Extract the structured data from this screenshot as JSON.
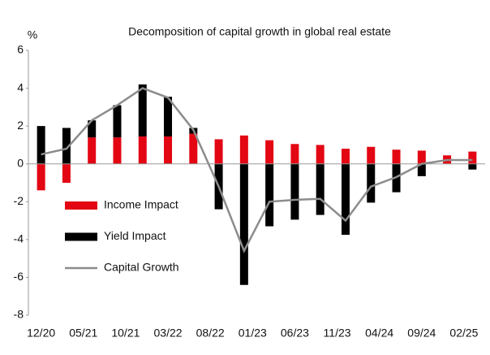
{
  "chart_data": {
    "type": "bar",
    "title": "Decomposition of capital growth in global real estate",
    "y_label": "%",
    "x": [
      0,
      3,
      6,
      9,
      12,
      15,
      18,
      21,
      24,
      27,
      30,
      33,
      36,
      39,
      42,
      45,
      48,
      51
    ],
    "xlim": [
      -1.5,
      52.5
    ],
    "xticks": [
      {
        "value": 0,
        "label": "12/20"
      },
      {
        "value": 5,
        "label": "05/21"
      },
      {
        "value": 10,
        "label": "10/21"
      },
      {
        "value": 15,
        "label": "03/22"
      },
      {
        "value": 20,
        "label": "08/22"
      },
      {
        "value": 25,
        "label": "01/23"
      },
      {
        "value": 30,
        "label": "06/23"
      },
      {
        "value": 35,
        "label": "11/23"
      },
      {
        "value": 40,
        "label": "04/24"
      },
      {
        "value": 45,
        "label": "09/24"
      },
      {
        "value": 50,
        "label": "02/25"
      }
    ],
    "ylim": [
      -8,
      6
    ],
    "yticks": [
      -8,
      -6,
      -4,
      -2,
      0,
      2,
      4,
      6
    ],
    "stacked": true,
    "legend": "left",
    "series": [
      {
        "name": "Income Impact",
        "type": "bar",
        "color": "#e30613",
        "values": [
          -1.4,
          -1.0,
          1.4,
          1.4,
          1.45,
          1.45,
          1.6,
          1.3,
          1.5,
          1.25,
          1.05,
          1.0,
          0.8,
          0.9,
          0.75,
          0.7,
          0.45,
          0.65
        ]
      },
      {
        "name": "Yield Impact",
        "type": "bar",
        "color": "#000000",
        "values": [
          2.0,
          1.9,
          0.9,
          1.7,
          2.75,
          2.1,
          0.3,
          -2.4,
          -6.4,
          -3.3,
          -2.95,
          -2.7,
          -3.75,
          -2.05,
          -1.5,
          -0.65,
          0.0,
          -0.3
        ]
      },
      {
        "name": "Capital Growth",
        "type": "line",
        "color": "#8c8c8c",
        "values": [
          0.5,
          0.8,
          2.3,
          3.1,
          4.0,
          3.5,
          1.8,
          -1.2,
          -4.6,
          -2.0,
          -1.9,
          -1.85,
          -3.0,
          -1.2,
          -0.7,
          0.0,
          0.2,
          0.2
        ]
      }
    ]
  }
}
